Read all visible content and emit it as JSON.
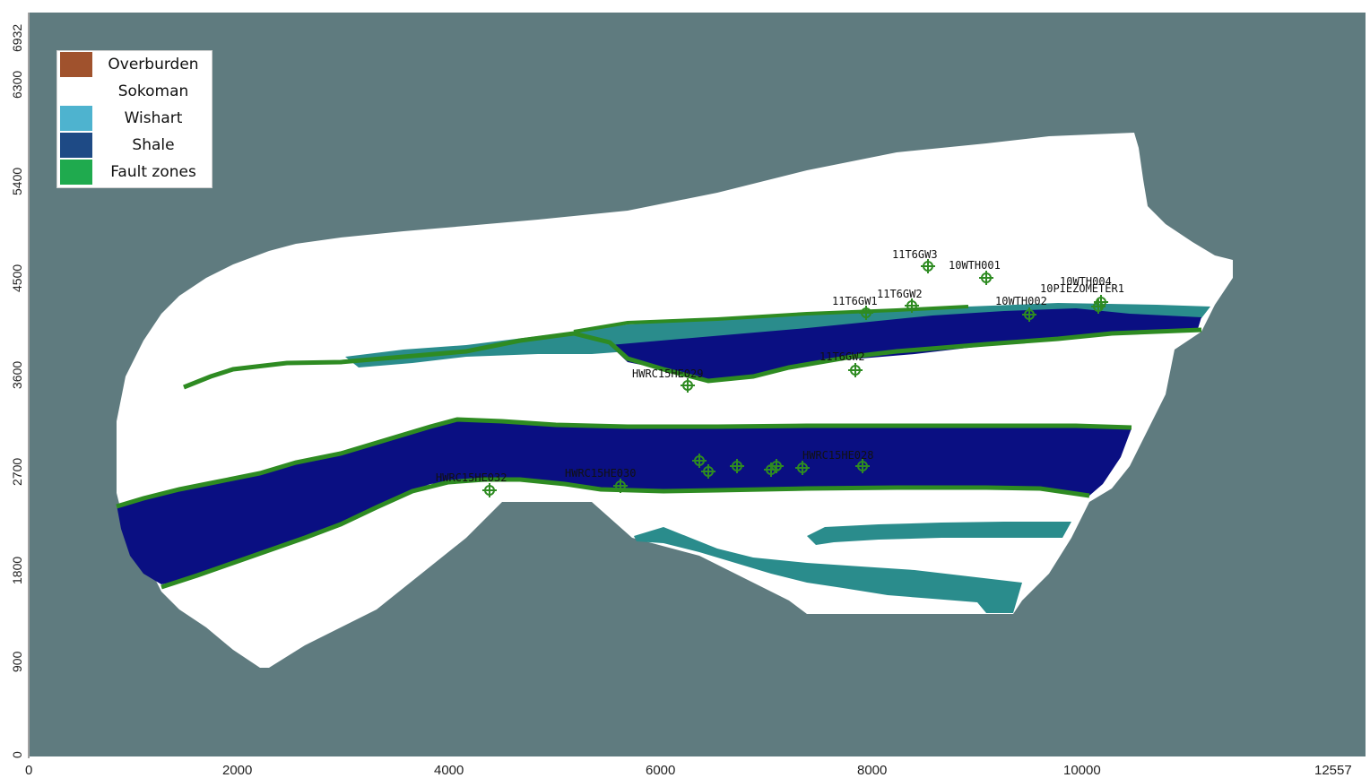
{
  "map": {
    "legend": [
      {
        "label": "Overburden",
        "color": "#a0522d"
      },
      {
        "label": "Sokoman",
        "color": "#ffffff"
      },
      {
        "label": "Wishart",
        "color": "#4eb3cf"
      },
      {
        "label": "Shale",
        "color": "#1e4a85"
      },
      {
        "label": "Fault zones",
        "color": "#1faa4e"
      }
    ],
    "x_axis": {
      "ticks": [
        "0",
        "2000",
        "4000",
        "6000",
        "8000",
        "10000",
        "12557"
      ]
    },
    "y_axis": {
      "ticks": [
        "0",
        "900",
        "1800",
        "2700",
        "3600",
        "4500",
        "5400",
        "6300",
        "6932"
      ]
    },
    "colors": {
      "background": "#5f7b7f",
      "sokoman": "#ffffff",
      "shale": "#0a0f82",
      "wishart": "#2a8c8c",
      "fault": "#2e8b22",
      "well_marker": "#2e8b22"
    },
    "wells": [
      {
        "name": "11T6GW3"
      },
      {
        "name": "10WTH001"
      },
      {
        "name": "10WTH004"
      },
      {
        "name": "11T6GW2"
      },
      {
        "name": "11T6GW1"
      },
      {
        "name": "10WTH002"
      },
      {
        "name": "10PIEZOMETER1"
      },
      {
        "name": "11T6GW2"
      },
      {
        "name": "HWRC15HE029"
      },
      {
        "name": "HWRC15HE032"
      },
      {
        "name": "HWRC15HE030"
      },
      {
        "name": "HWRC15HE028"
      }
    ]
  }
}
